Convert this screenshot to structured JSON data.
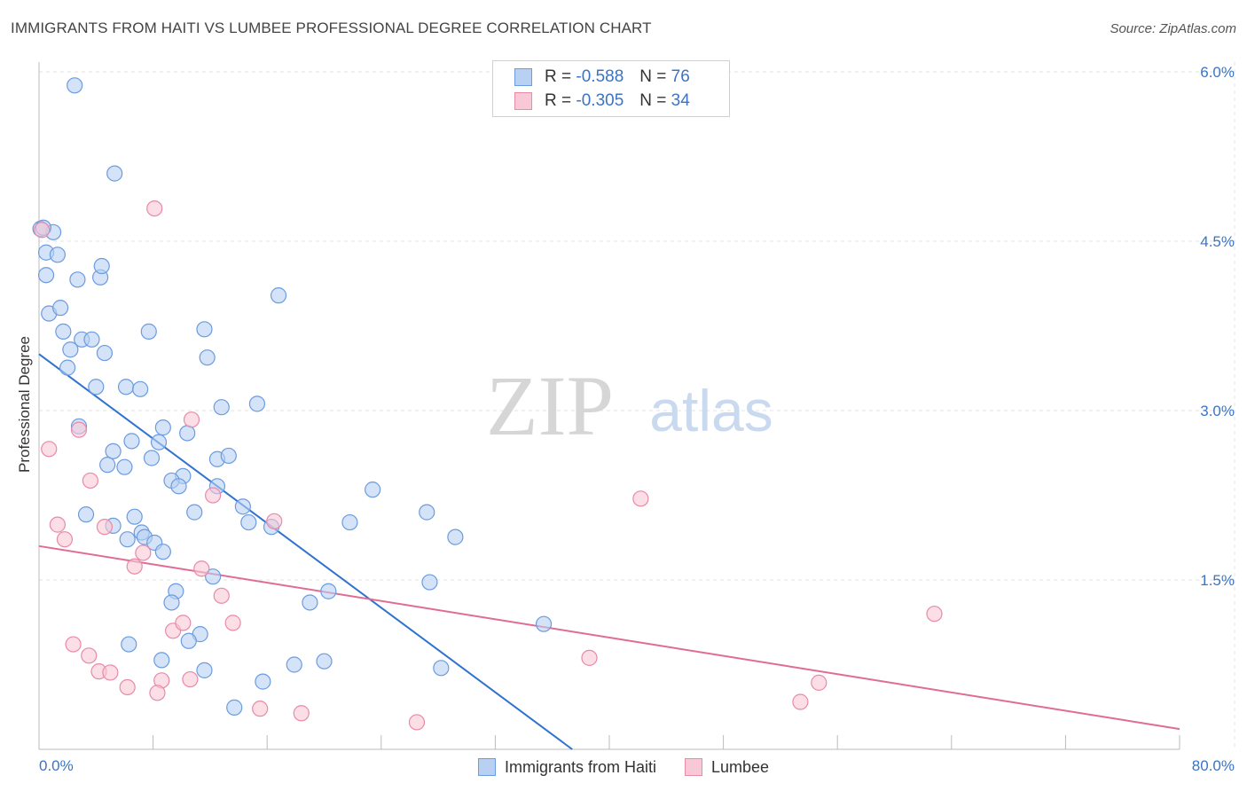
{
  "title": "IMMIGRANTS FROM HAITI VS LUMBEE PROFESSIONAL DEGREE CORRELATION CHART",
  "source": "Source: ZipAtlas.com",
  "watermark": {
    "zip": "ZIP",
    "atlas": "atlas"
  },
  "legend": {
    "rows": [
      {
        "r_label": "R =",
        "r_value": "-0.588",
        "n_label": "N =",
        "n_value": "76"
      },
      {
        "r_label": "R =",
        "r_value": "-0.305",
        "n_label": "N =",
        "n_value": "34"
      }
    ]
  },
  "colors": {
    "haiti_fill": "#b8d0f2",
    "haiti_stroke": "#6b9be0",
    "haiti_line": "#2f72cf",
    "lumbee_fill": "#f8c8d6",
    "lumbee_stroke": "#e88aa8",
    "lumbee_line": "#e06c93",
    "tick_text": "#3b74c4",
    "grid": "#e3e3e3"
  },
  "chart_data": {
    "type": "scatter",
    "title": "IMMIGRANTS FROM HAITI VS LUMBEE PROFESSIONAL DEGREE CORRELATION CHART",
    "xlabel": "",
    "ylabel": "Professional Degree",
    "xlim": [
      0,
      80
    ],
    "ylim": [
      0,
      6.3
    ],
    "x_tick_labels": [
      "0.0%",
      "80.0%"
    ],
    "y_ticks": [
      1.5,
      3.0,
      4.5,
      6.0
    ],
    "y_tick_labels": [
      "1.5%",
      "3.0%",
      "4.5%",
      "6.0%"
    ],
    "grid": true,
    "legend_placement": "top-center",
    "series": [
      {
        "name": "Immigrants from Haiti",
        "points": [
          [
            2.5,
            5.88
          ],
          [
            5.3,
            5.1
          ],
          [
            0.1,
            4.61
          ],
          [
            1.0,
            4.58
          ],
          [
            0.5,
            4.4
          ],
          [
            1.3,
            4.38
          ],
          [
            0.5,
            4.2
          ],
          [
            2.7,
            4.16
          ],
          [
            4.3,
            4.18
          ],
          [
            4.4,
            4.28
          ],
          [
            16.8,
            4.02
          ],
          [
            0.7,
            3.86
          ],
          [
            1.5,
            3.91
          ],
          [
            1.7,
            3.7
          ],
          [
            7.7,
            3.7
          ],
          [
            11.6,
            3.72
          ],
          [
            3.0,
            3.63
          ],
          [
            3.7,
            3.63
          ],
          [
            2.2,
            3.54
          ],
          [
            4.6,
            3.51
          ],
          [
            11.8,
            3.47
          ],
          [
            2.0,
            3.38
          ],
          [
            4.0,
            3.21
          ],
          [
            6.1,
            3.21
          ],
          [
            7.1,
            3.19
          ],
          [
            12.8,
            3.03
          ],
          [
            15.3,
            3.06
          ],
          [
            2.8,
            2.86
          ],
          [
            8.7,
            2.85
          ],
          [
            6.5,
            2.73
          ],
          [
            8.4,
            2.72
          ],
          [
            10.4,
            2.8
          ],
          [
            5.2,
            2.64
          ],
          [
            7.9,
            2.58
          ],
          [
            12.5,
            2.57
          ],
          [
            13.3,
            2.6
          ],
          [
            4.8,
            2.52
          ],
          [
            6.0,
            2.5
          ],
          [
            10.1,
            2.42
          ],
          [
            9.3,
            2.38
          ],
          [
            9.8,
            2.33
          ],
          [
            12.5,
            2.33
          ],
          [
            23.4,
            2.3
          ],
          [
            14.3,
            2.15
          ],
          [
            3.3,
            2.08
          ],
          [
            10.9,
            2.1
          ],
          [
            6.7,
            2.06
          ],
          [
            27.2,
            2.1
          ],
          [
            14.7,
            2.01
          ],
          [
            21.8,
            2.01
          ],
          [
            16.3,
            1.97
          ],
          [
            5.2,
            1.98
          ],
          [
            29.2,
            1.88
          ],
          [
            7.2,
            1.92
          ],
          [
            7.4,
            1.88
          ],
          [
            6.2,
            1.86
          ],
          [
            8.1,
            1.83
          ],
          [
            8.7,
            1.75
          ],
          [
            12.2,
            1.53
          ],
          [
            9.6,
            1.4
          ],
          [
            20.3,
            1.4
          ],
          [
            27.4,
            1.48
          ],
          [
            9.3,
            1.3
          ],
          [
            19.0,
            1.3
          ],
          [
            35.4,
            1.11
          ],
          [
            11.3,
            1.02
          ],
          [
            10.5,
            0.96
          ],
          [
            6.3,
            0.93
          ],
          [
            8.6,
            0.79
          ],
          [
            17.9,
            0.75
          ],
          [
            20.0,
            0.78
          ],
          [
            28.2,
            0.72
          ],
          [
            11.6,
            0.7
          ],
          [
            15.7,
            0.6
          ],
          [
            13.7,
            0.37
          ],
          [
            0.3,
            4.62
          ]
        ]
      },
      {
        "name": "Lumbee",
        "points": [
          [
            8.1,
            4.79
          ],
          [
            0.7,
            2.66
          ],
          [
            2.8,
            2.83
          ],
          [
            10.7,
            2.92
          ],
          [
            3.6,
            2.38
          ],
          [
            12.2,
            2.25
          ],
          [
            42.2,
            2.22
          ],
          [
            1.3,
            1.99
          ],
          [
            4.6,
            1.97
          ],
          [
            16.5,
            2.02
          ],
          [
            1.8,
            1.86
          ],
          [
            7.3,
            1.74
          ],
          [
            6.7,
            1.62
          ],
          [
            11.4,
            1.6
          ],
          [
            12.8,
            1.36
          ],
          [
            13.6,
            1.12
          ],
          [
            9.4,
            1.05
          ],
          [
            10.1,
            1.12
          ],
          [
            2.4,
            0.93
          ],
          [
            3.5,
            0.83
          ],
          [
            4.2,
            0.69
          ],
          [
            5.0,
            0.68
          ],
          [
            8.6,
            0.61
          ],
          [
            10.6,
            0.62
          ],
          [
            6.2,
            0.55
          ],
          [
            8.3,
            0.5
          ],
          [
            38.6,
            0.81
          ],
          [
            62.8,
            1.2
          ],
          [
            54.7,
            0.59
          ],
          [
            53.4,
            0.42
          ],
          [
            15.5,
            0.36
          ],
          [
            18.4,
            0.32
          ],
          [
            26.5,
            0.24
          ],
          [
            0.2,
            4.6
          ]
        ]
      }
    ],
    "trendlines": [
      {
        "series": "Immigrants from Haiti",
        "x0": 0,
        "y0": 3.5,
        "x1": 37.4,
        "y1": 0.0
      },
      {
        "series": "Lumbee",
        "x0": 0,
        "y0": 1.8,
        "x1": 80,
        "y1": 0.18
      }
    ]
  },
  "bottom_legend": [
    {
      "label": "Immigrants from Haiti"
    },
    {
      "label": "Lumbee"
    }
  ]
}
